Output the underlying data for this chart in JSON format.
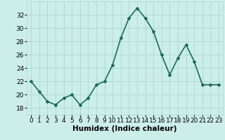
{
  "x": [
    0,
    1,
    2,
    3,
    4,
    5,
    6,
    7,
    8,
    9,
    10,
    11,
    12,
    13,
    14,
    15,
    16,
    17,
    18,
    19,
    20,
    21,
    22,
    23
  ],
  "y": [
    22,
    20.5,
    19,
    18.5,
    19.5,
    20,
    18.5,
    19.5,
    21.5,
    22,
    24.5,
    28.5,
    31.5,
    33,
    31.5,
    29.5,
    26,
    23,
    25.5,
    27.5,
    25,
    21.5,
    21.5,
    21.5
  ],
  "line_color": "#1a6b5a",
  "marker": "D",
  "marker_size": 2.0,
  "xlabel": "Humidex (Indice chaleur)",
  "ylim": [
    17,
    34
  ],
  "xlim": [
    -0.5,
    23.5
  ],
  "yticks": [
    18,
    20,
    22,
    24,
    26,
    28,
    30,
    32
  ],
  "xticks": [
    0,
    1,
    2,
    3,
    4,
    5,
    6,
    7,
    8,
    9,
    10,
    11,
    12,
    13,
    14,
    15,
    16,
    17,
    18,
    19,
    20,
    21,
    22,
    23
  ],
  "bg_color": "#cceee8",
  "grid_color": "#aad8d0",
  "line_width": 1.2,
  "xlabel_fontsize": 7.5,
  "tick_fontsize": 6.5
}
